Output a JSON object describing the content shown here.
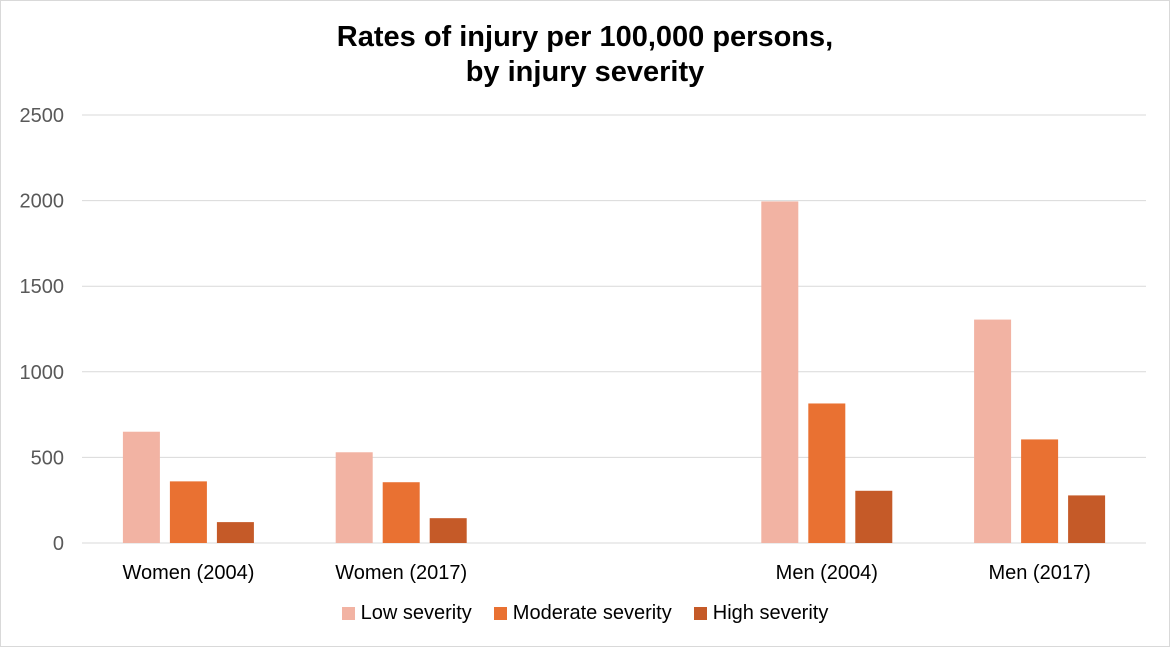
{
  "chart_data": {
    "type": "bar",
    "title": "Rates of injury per 100,000 persons,",
    "subtitle": "by injury severity",
    "categories": [
      "Women (2004)",
      "Women (2017)",
      "",
      "Men (2004)",
      "Men (2017)"
    ],
    "series": [
      {
        "name": "Low severity",
        "color": "#f2b3a3",
        "values": [
          650,
          530,
          null,
          1995,
          1305
        ]
      },
      {
        "name": "Moderate severity",
        "color": "#e97132",
        "values": [
          360,
          355,
          null,
          815,
          605
        ]
      },
      {
        "name": "High severity",
        "color": "#c55a28",
        "values": [
          122,
          145,
          null,
          305,
          278
        ]
      }
    ],
    "yticks": [
      "0",
      "500",
      "1000",
      "1500",
      "2000",
      "2500"
    ],
    "ylim": [
      0,
      2500
    ],
    "grid": true,
    "legend_position": "bottom"
  }
}
